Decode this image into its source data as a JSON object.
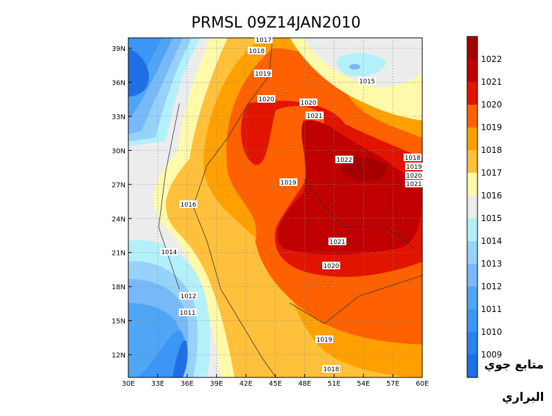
{
  "title": "PRMSL 09Z14JAN2010",
  "lon_ticks": [
    "30E",
    "33E",
    "36E",
    "39E",
    "42E",
    "45E",
    "48E",
    "51E",
    "54E",
    "57E",
    "60E"
  ],
  "lat_ticks": [
    "39N",
    "36N",
    "33N",
    "30N",
    "27N",
    "24N",
    "21N",
    "18N",
    "15N",
    "12N"
  ],
  "colorbar": {
    "levels": [
      1009,
      1010,
      1011,
      1012,
      1013,
      1014,
      1015,
      1016,
      1017,
      1018,
      1019,
      1020,
      1021,
      1022
    ],
    "colors": [
      "#1e6ee6",
      "#2882f0",
      "#3c96f5",
      "#50a5f5",
      "#78b9fa",
      "#96d2fa",
      "#b4f0fa",
      "#ececec",
      "#fffaaa",
      "#ffc03c",
      "#ffa000",
      "#ff6000",
      "#e11400",
      "#c00000",
      "#a50000"
    ]
  },
  "contour_labels": [
    1017,
    1018,
    1019,
    1020,
    1020,
    1021,
    1022,
    1018,
    1019,
    1020,
    1021,
    1019,
    1016,
    1015,
    1021,
    1014,
    1020,
    1012,
    1011,
    1019,
    1018
  ],
  "watermark": [
    "متابع جوي",
    "البراري"
  ]
}
